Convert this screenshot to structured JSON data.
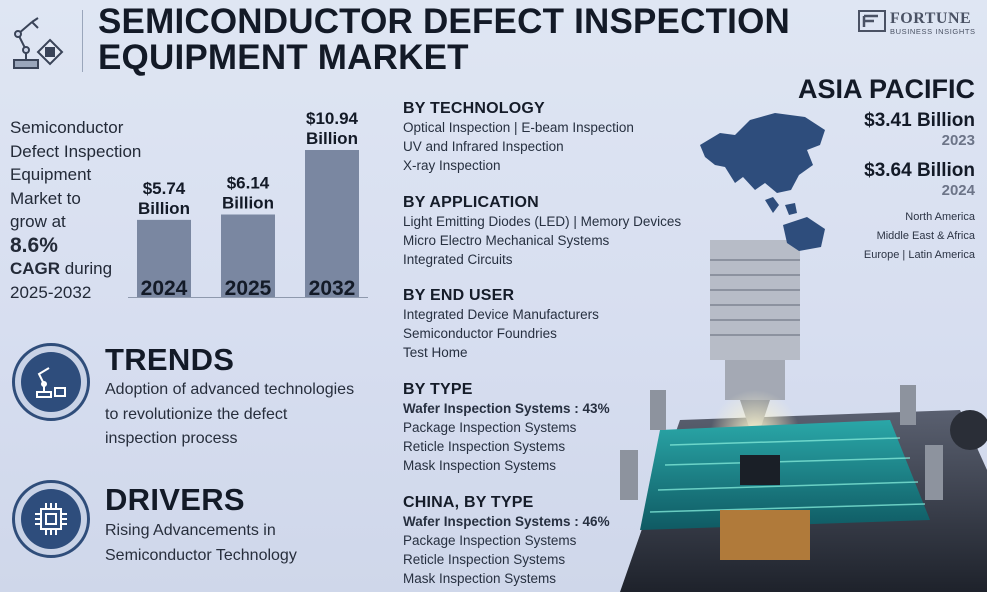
{
  "title": "SEMICONDUCTOR DEFECT INSPECTION EQUIPMENT MARKET",
  "title_lines": [
    "SEMICONDUCTOR DEFECT INSPECTION",
    "EQUIPMENT MARKET"
  ],
  "brand": {
    "name": "FORTUNE",
    "sub": "BUSINESS INSIGHTS"
  },
  "intro": {
    "line1": "Semiconductor",
    "line2": "Defect Inspection",
    "line3": "Equipment",
    "line4": "Market to",
    "line5": "grow at",
    "cagr": "8.6%",
    "cagr_label": "CAGR",
    "during": " during",
    "period": "2025-2032"
  },
  "chart_data": {
    "type": "bar",
    "categories": [
      "2024",
      "2025",
      "2032"
    ],
    "values": [
      5.74,
      6.14,
      10.94
    ],
    "data_labels": [
      [
        "$5.74",
        "Billion"
      ],
      [
        "$6.14",
        "Billion"
      ],
      [
        "$10.94",
        "Billion"
      ]
    ],
    "unit": "Billion",
    "bar_color": "#7a87a1",
    "grid": false
  },
  "trends": {
    "heading": "TRENDS",
    "text_lines": [
      "Adoption of advanced technologies",
      "to revolutionize the defect",
      "inspection process"
    ]
  },
  "drivers": {
    "heading": "DRIVERS",
    "text_lines": [
      "Rising Advancements in",
      "Semiconductor Technology"
    ]
  },
  "segments": {
    "technology": {
      "title": "BY TECHNOLOGY",
      "lines": [
        "Optical Inspection  |  E-beam Inspection",
        "UV and Infrared Inspection",
        "X-ray Inspection"
      ]
    },
    "application": {
      "title": "BY APPLICATION",
      "lines": [
        "Light Emitting Diodes (LED)  |  Memory Devices",
        "Micro Electro Mechanical Systems",
        "Integrated Circuits"
      ]
    },
    "end_user": {
      "title": "BY END USER",
      "lines": [
        "Integrated Device Manufacturers",
        "Semiconductor Foundries",
        "Test Home"
      ]
    },
    "type": {
      "title": "BY TYPE",
      "bold_line": "Wafer Inspection Systems : 43%",
      "lines": [
        "Package Inspection Systems",
        "Reticle Inspection Systems",
        "Mask Inspection Systems"
      ]
    },
    "china_type": {
      "title": "CHINA, BY TYPE",
      "bold_line": "Wafer Inspection Systems : 46%",
      "lines": [
        "Package Inspection Systems",
        "Reticle Inspection Systems",
        "Mask Inspection Systems"
      ]
    }
  },
  "region": {
    "title": "ASIA PACIFIC",
    "value_2023": "$3.41 Billion",
    "year_2023": "2023",
    "value_2024": "$3.64 Billion",
    "year_2024": "2024",
    "others": [
      "North America",
      "Middle East & Africa",
      "Europe  |  Latin America"
    ]
  },
  "colors": {
    "accent": "#2e4d7c",
    "bar": "#7a87a1",
    "text": "#131a27"
  }
}
